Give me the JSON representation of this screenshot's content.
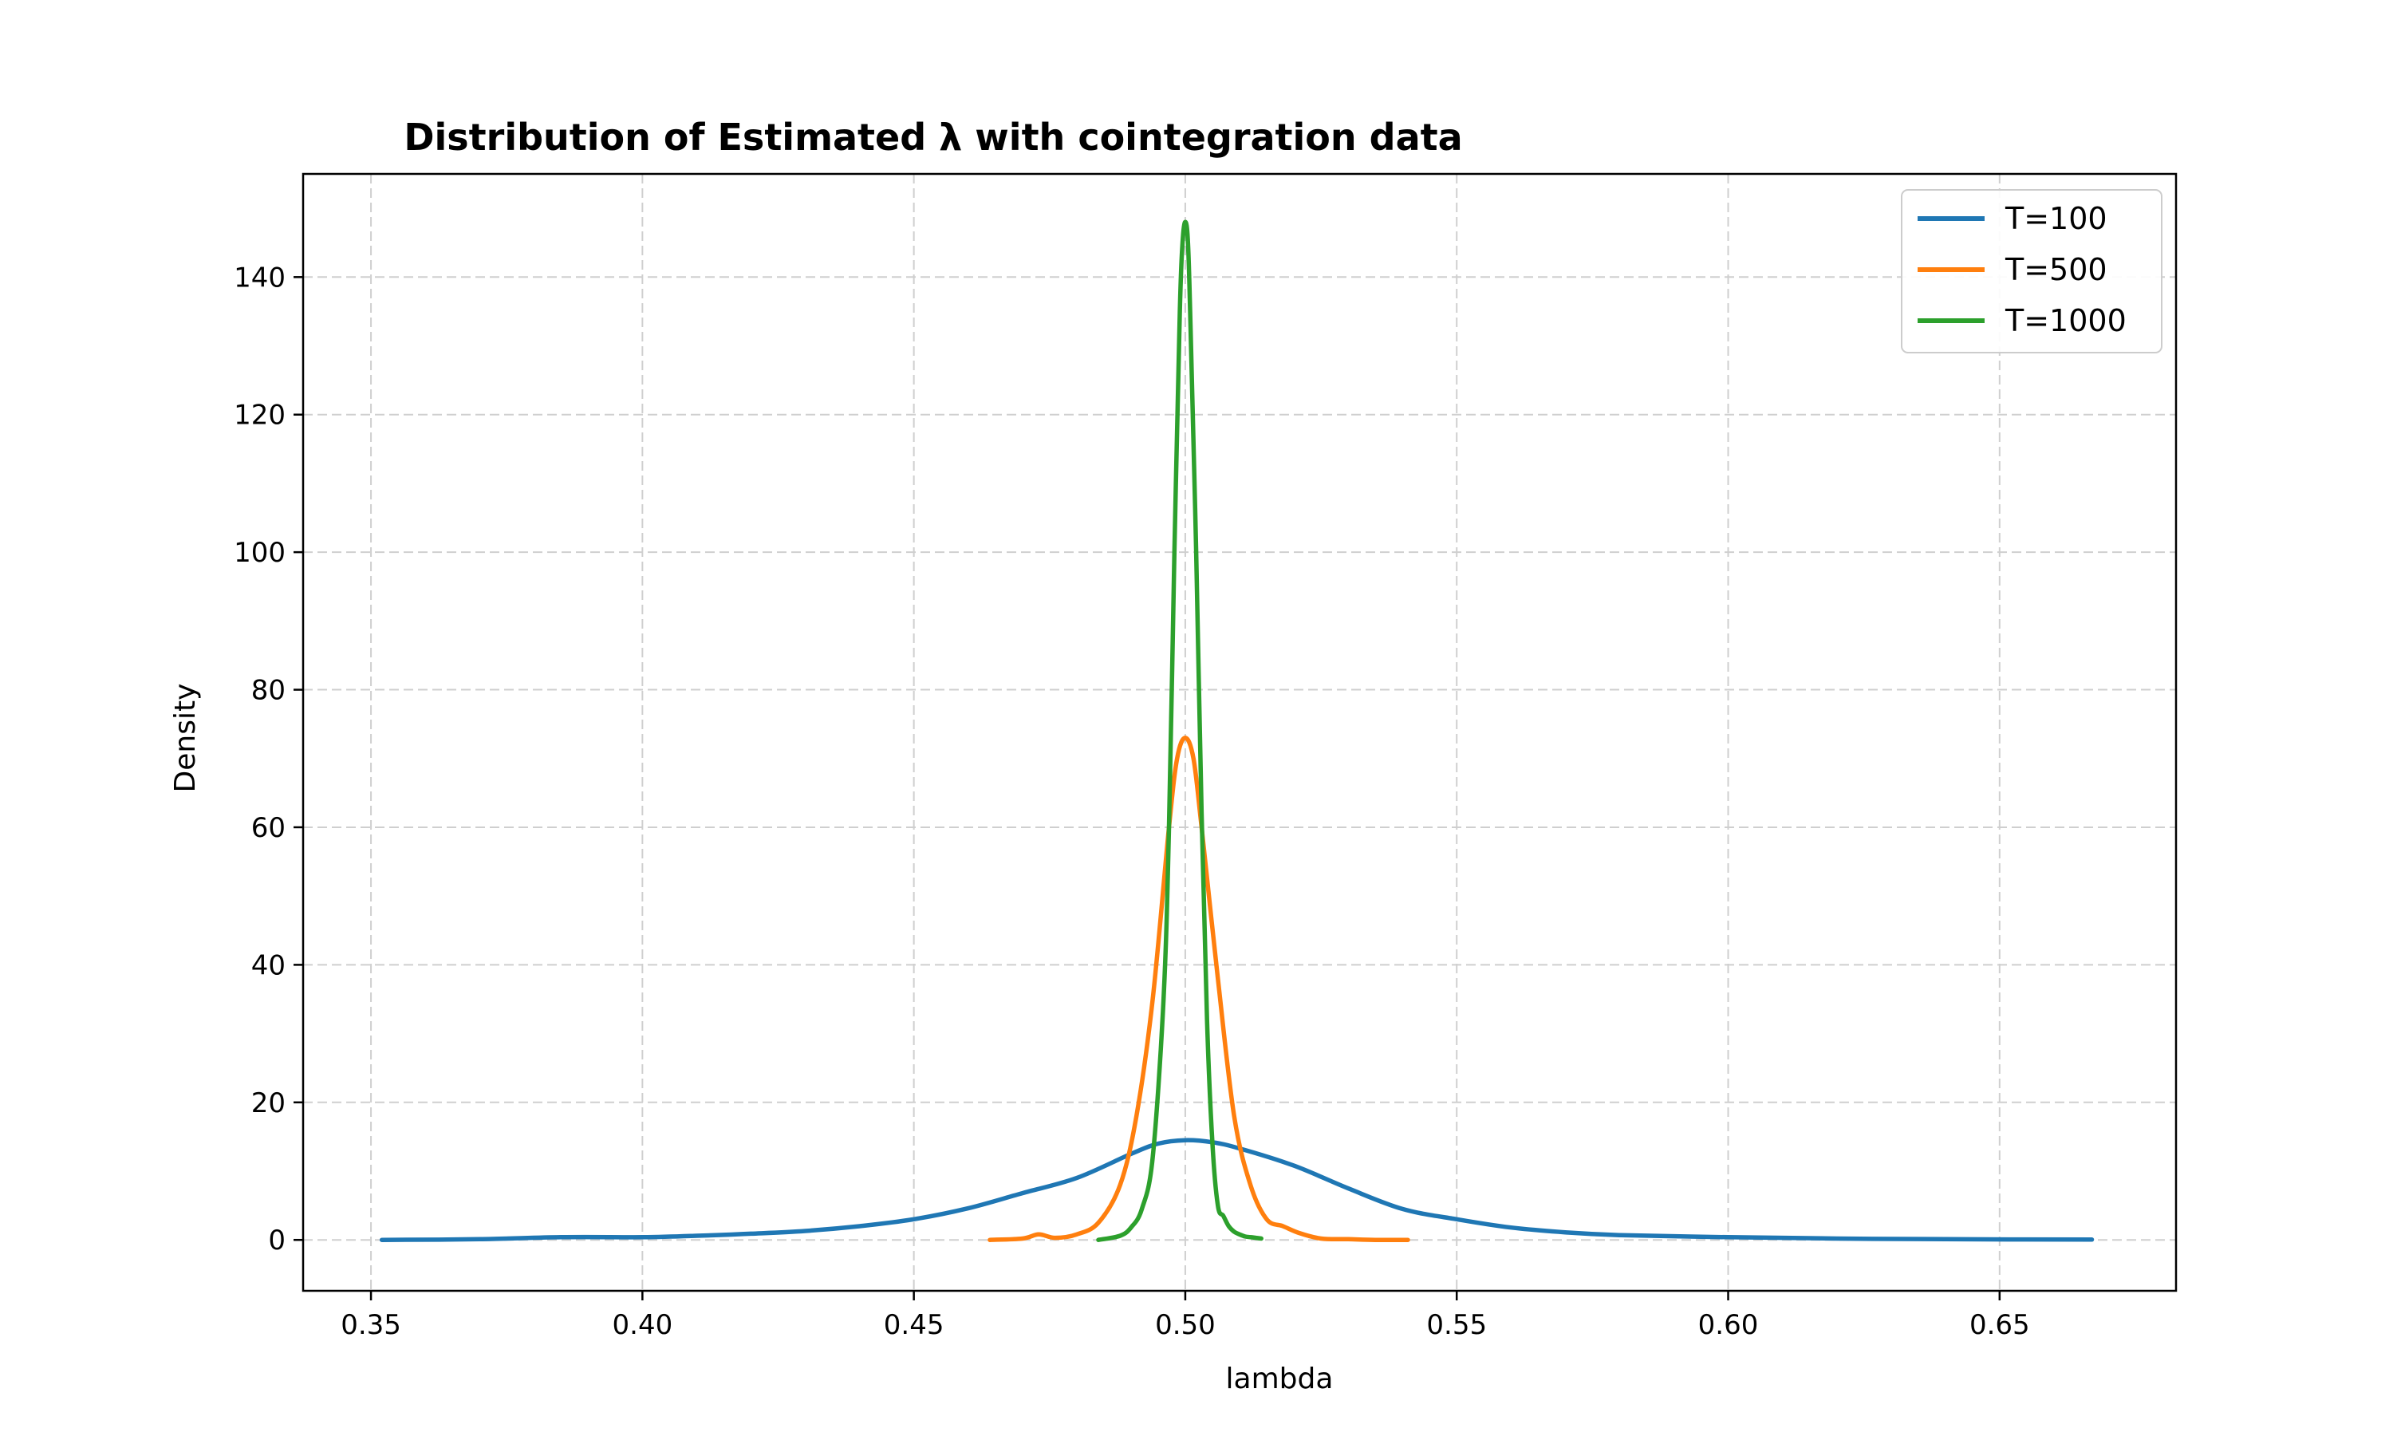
{
  "chart_data": {
    "type": "line",
    "title": "Distribution of Estimated λ with cointegration data",
    "xlabel": "lambda",
    "ylabel": "Density",
    "xlim": [
      0.3375,
      0.6825
    ],
    "ylim": [
      -7.4,
      155
    ],
    "xticks": [
      0.35,
      0.4,
      0.45,
      0.5,
      0.55,
      0.6,
      0.65
    ],
    "xtick_labels": [
      "0.35",
      "0.40",
      "0.45",
      "0.50",
      "0.55",
      "0.60",
      "0.65"
    ],
    "yticks": [
      0,
      20,
      40,
      60,
      80,
      100,
      120,
      140
    ],
    "ytick_labels": [
      "0",
      "20",
      "40",
      "60",
      "80",
      "100",
      "120",
      "140"
    ],
    "grid": true,
    "legend_position": "top-right",
    "series": [
      {
        "name": "T=100",
        "color": "#1f77b4",
        "x": [
          0.352,
          0.37,
          0.385,
          0.4,
          0.41,
          0.42,
          0.43,
          0.44,
          0.45,
          0.46,
          0.47,
          0.48,
          0.49,
          0.495,
          0.5,
          0.505,
          0.51,
          0.52,
          0.53,
          0.54,
          0.55,
          0.56,
          0.57,
          0.58,
          0.6,
          0.62,
          0.64,
          0.667
        ],
        "y": [
          0.0,
          0.1,
          0.4,
          0.4,
          0.6,
          0.9,
          1.3,
          2.0,
          3.0,
          4.6,
          6.8,
          9.0,
          12.5,
          14.0,
          14.5,
          14.2,
          13.3,
          10.8,
          7.5,
          4.5,
          3.0,
          1.8,
          1.1,
          0.7,
          0.4,
          0.2,
          0.1,
          0.05
        ]
      },
      {
        "name": "T=500",
        "color": "#ff7f0e",
        "x": [
          0.464,
          0.47,
          0.473,
          0.476,
          0.48,
          0.484,
          0.488,
          0.491,
          0.494,
          0.497,
          0.4985,
          0.5,
          0.5015,
          0.503,
          0.506,
          0.509,
          0.512,
          0.515,
          0.518,
          0.521,
          0.525,
          0.53,
          0.535,
          0.541
        ],
        "y": [
          0.0,
          0.2,
          0.8,
          0.3,
          0.8,
          2.5,
          8.0,
          18.0,
          35.0,
          60.0,
          70.0,
          73.0,
          70.0,
          60.0,
          38.0,
          18.0,
          8.0,
          3.0,
          2.0,
          1.0,
          0.2,
          0.1,
          0.0,
          0.0
        ]
      },
      {
        "name": "T=1000",
        "color": "#2ca02c",
        "x": [
          0.484,
          0.488,
          0.49,
          0.492,
          0.494,
          0.496,
          0.497,
          0.498,
          0.499,
          0.4995,
          0.5,
          0.5005,
          0.501,
          0.502,
          0.503,
          0.504,
          0.505,
          0.506,
          0.507,
          0.508,
          0.509,
          0.51,
          0.511,
          0.512,
          0.513,
          0.514
        ],
        "y": [
          0.0,
          0.6,
          1.8,
          4.5,
          12.0,
          35.0,
          60.0,
          100.0,
          135.0,
          145.0,
          148.0,
          145.0,
          132.0,
          100.0,
          62.0,
          32.0,
          14.0,
          5.0,
          3.5,
          2.0,
          1.2,
          0.8,
          0.5,
          0.4,
          0.3,
          0.2
        ]
      }
    ]
  }
}
